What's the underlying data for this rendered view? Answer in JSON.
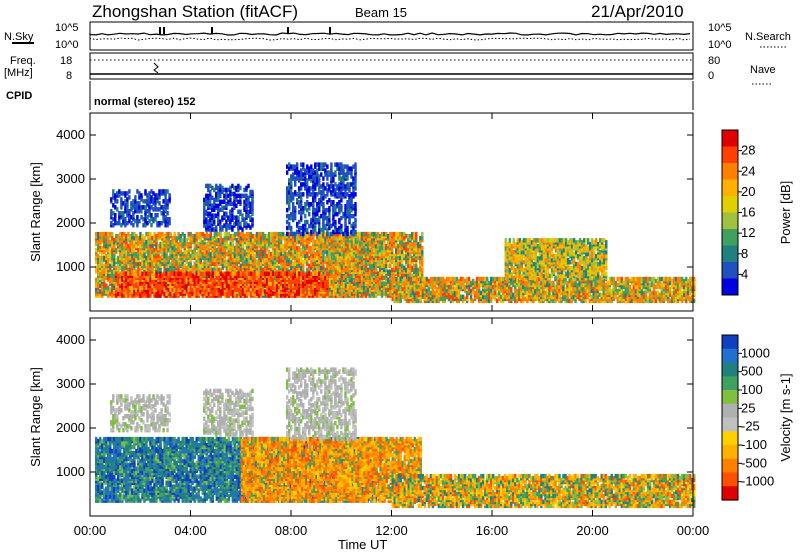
{
  "header": {
    "station": "Zhongshan Station (fitACF)",
    "beam": "Beam 15",
    "date": "21/Apr/2010"
  },
  "top_panels": {
    "nsky_label": "N.Sky",
    "nsearch_label": "N.Search",
    "freq_label": "Freq.",
    "freq_unit": "[MHz]",
    "nave_label": "Nave",
    "cpid_label": "CPID",
    "nsky_ticks": [
      "10^5",
      "10^0"
    ],
    "nsearch_ticks": [
      "10^5",
      "10^0"
    ],
    "freq_ticks": [
      "18",
      "8"
    ],
    "nave_ticks": [
      "80",
      "0"
    ],
    "cpid_text": "normal (stereo) 152"
  },
  "chart_data": [
    {
      "type": "heatmap",
      "name": "power-panel",
      "x_tick_labels": [
        "00:00",
        "04:00",
        "08:00",
        "12:00",
        "16:00",
        "20:00",
        "00:00"
      ],
      "xlim_hours": [
        0,
        24
      ],
      "ylabel": "Slant Range [km]",
      "ylim": [
        0,
        4500
      ],
      "y_ticks": [
        1000,
        2000,
        3000,
        4000
      ],
      "colorbar": {
        "label": "Power [dB]",
        "ticks": [
          "28",
          "24",
          "20",
          "16",
          "12",
          "8",
          "4"
        ],
        "colors": [
          "#e00000",
          "#ff4000",
          "#ff8000",
          "#ffb000",
          "#e0d000",
          "#a0c040",
          "#40a060",
          "#208080",
          "#2050c0",
          "#0000e0"
        ]
      },
      "regions": [
        {
          "t0": 0.2,
          "t1": 11.4,
          "r0": 300,
          "r1": 1700,
          "level": "high"
        },
        {
          "t0": 1.0,
          "t1": 11.0,
          "r0": 300,
          "r1": 800,
          "level": "very-high"
        },
        {
          "t0": 9.5,
          "t1": 13.2,
          "r0": 300,
          "r1": 1700,
          "level": "high"
        },
        {
          "t0": 12.0,
          "t1": 24.0,
          "r0": 180,
          "r1": 700,
          "level": "high"
        },
        {
          "t0": 16.5,
          "t1": 20.5,
          "r0": 700,
          "r1": 1600,
          "level": "medium"
        },
        {
          "t0": 0.8,
          "t1": 3.2,
          "r0": 1900,
          "r1": 2700,
          "level": "low"
        },
        {
          "t0": 4.5,
          "t1": 6.5,
          "r0": 1800,
          "r1": 2800,
          "level": "low"
        },
        {
          "t0": 7.8,
          "t1": 10.6,
          "r0": 1700,
          "r1": 3300,
          "level": "low"
        }
      ]
    },
    {
      "type": "heatmap",
      "name": "velocity-panel",
      "x_tick_labels": [
        "00:00",
        "04:00",
        "08:00",
        "12:00",
        "16:00",
        "20:00",
        "00:00"
      ],
      "xlabel": "Time UT",
      "xlim_hours": [
        0,
        24
      ],
      "ylabel": "Slant Range [km]",
      "ylim": [
        0,
        4500
      ],
      "y_ticks": [
        1000,
        2000,
        3000,
        4000
      ],
      "colorbar": {
        "label": "Velocity [m s-1]",
        "ticks": [
          "1000",
          "500",
          "100",
          "25",
          "-25",
          "-100",
          "-500",
          "-1000"
        ],
        "colors": [
          "#1040c0",
          "#2070d0",
          "#208080",
          "#40a060",
          "#80c040",
          "#b0b0b0",
          "#c0c0c0",
          "#ffd000",
          "#ffb000",
          "#ff8000",
          "#ff5000",
          "#e00000"
        ]
      },
      "regions": [
        {
          "t0": 0.2,
          "t1": 11.4,
          "r0": 300,
          "r1": 1700,
          "level": "blue-green"
        },
        {
          "t0": 6.0,
          "t1": 13.2,
          "r0": 300,
          "r1": 1700,
          "level": "orange"
        },
        {
          "t0": 12.0,
          "t1": 24.0,
          "r0": 180,
          "r1": 900,
          "level": "orange-green"
        },
        {
          "t0": 0.8,
          "t1": 3.2,
          "r0": 1900,
          "r1": 2700,
          "level": "grey"
        },
        {
          "t0": 4.5,
          "t1": 6.5,
          "r0": 1800,
          "r1": 2800,
          "level": "grey"
        },
        {
          "t0": 7.8,
          "t1": 10.6,
          "r0": 1700,
          "r1": 3300,
          "level": "grey"
        }
      ]
    }
  ]
}
